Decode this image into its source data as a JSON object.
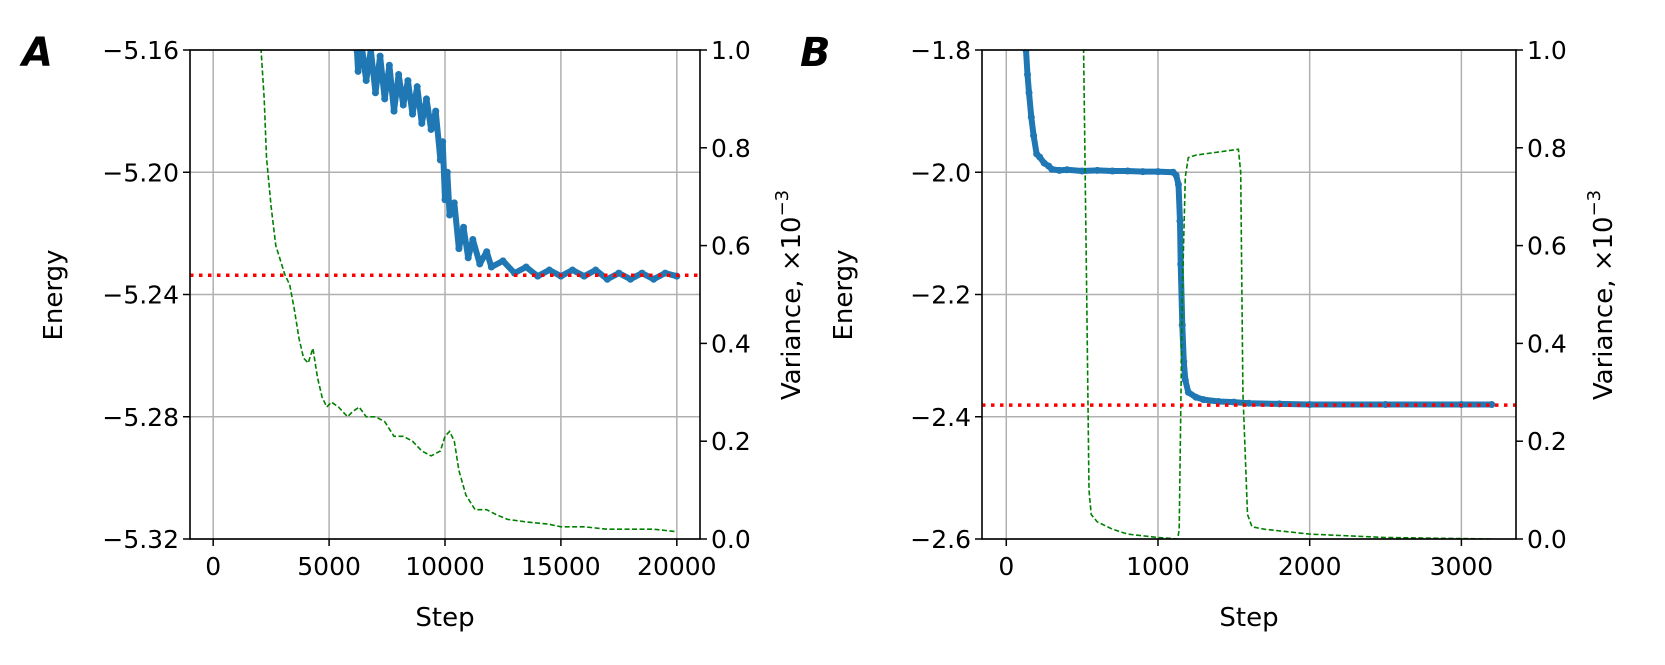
{
  "chart_data": [
    {
      "type": "line",
      "panel_label": "A",
      "xlabel": "Step",
      "ylabel": "Energy",
      "ylabel_right": "Variance, ×10",
      "ylabel_right_exponent": "−3",
      "xlim": [
        -1000,
        21000
      ],
      "ylim": [
        -5.32,
        -5.16
      ],
      "ylim_right": [
        0.0,
        1.0
      ],
      "xticks": [
        0,
        5000,
        10000,
        15000,
        20000
      ],
      "xtick_labels": [
        "0",
        "5000",
        "10000",
        "15000",
        "20000"
      ],
      "yticks": [
        -5.16,
        -5.2,
        -5.24,
        -5.28,
        -5.32
      ],
      "ytick_labels": [
        "−5.16",
        "−5.20",
        "−5.24",
        "−5.28",
        "−5.32"
      ],
      "yticks_right": [
        0.0,
        0.2,
        0.4,
        0.6,
        0.8,
        1.0
      ],
      "ytick_right_labels": [
        "0.0",
        "0.2",
        "0.4",
        "0.6",
        "0.8",
        "1.0"
      ],
      "grid": true,
      "reference_line": {
        "y": -5.2337,
        "style": "dotted",
        "color": "#ff0000"
      },
      "series": [
        {
          "axis": "left",
          "style": "markers-line",
          "color": "#1f77b4",
          "x": [
            6200,
            6250,
            6400,
            6600,
            6800,
            7000,
            7200,
            7400,
            7600,
            7800,
            8000,
            8200,
            8400,
            8600,
            8800,
            9000,
            9200,
            9400,
            9600,
            9800,
            9900,
            10000,
            10100,
            10200,
            10400,
            10600,
            10800,
            11000,
            11200,
            11500,
            11800,
            12000,
            12500,
            13000,
            13500,
            14000,
            14500,
            15000,
            15500,
            16000,
            16500,
            17000,
            17500,
            18000,
            18500,
            19000,
            19500,
            20000
          ],
          "y": [
            -5.16,
            -5.167,
            -5.158,
            -5.17,
            -5.16,
            -5.174,
            -5.162,
            -5.176,
            -5.165,
            -5.18,
            -5.168,
            -5.178,
            -5.17,
            -5.181,
            -5.172,
            -5.184,
            -5.176,
            -5.186,
            -5.18,
            -5.196,
            -5.19,
            -5.209,
            -5.2,
            -5.214,
            -5.21,
            -5.225,
            -5.218,
            -5.228,
            -5.222,
            -5.23,
            -5.226,
            -5.231,
            -5.229,
            -5.233,
            -5.231,
            -5.234,
            -5.232,
            -5.234,
            -5.232,
            -5.234,
            -5.232,
            -5.235,
            -5.233,
            -5.235,
            -5.233,
            -5.235,
            -5.233,
            -5.234
          ]
        },
        {
          "axis": "right",
          "style": "dashed",
          "color": "#008000",
          "x": [
            2000,
            2200,
            2300,
            2500,
            2700,
            2900,
            3100,
            3300,
            3500,
            3700,
            3900,
            4100,
            4300,
            4500,
            4700,
            4900,
            5100,
            5400,
            5800,
            6000,
            6300,
            6600,
            7000,
            7400,
            7800,
            8200,
            8600,
            9000,
            9400,
            9800,
            10000,
            10200,
            10400,
            10600,
            10900,
            11300,
            11800,
            12200,
            12700,
            13500,
            14500,
            15000,
            16000,
            17000,
            18000,
            19000,
            20000
          ],
          "y": [
            1.05,
            0.9,
            0.78,
            0.68,
            0.6,
            0.57,
            0.54,
            0.52,
            0.47,
            0.41,
            0.37,
            0.36,
            0.39,
            0.33,
            0.29,
            0.27,
            0.28,
            0.27,
            0.25,
            0.26,
            0.27,
            0.25,
            0.25,
            0.24,
            0.21,
            0.21,
            0.2,
            0.18,
            0.17,
            0.18,
            0.21,
            0.22,
            0.2,
            0.14,
            0.09,
            0.06,
            0.06,
            0.05,
            0.04,
            0.035,
            0.03,
            0.025,
            0.025,
            0.02,
            0.02,
            0.02,
            0.015
          ]
        }
      ]
    },
    {
      "type": "line",
      "panel_label": "B",
      "xlabel": "Step",
      "ylabel": "Energy",
      "ylabel_right": "Variance, ×10",
      "ylabel_right_exponent": "−3",
      "xlim": [
        -160,
        3360
      ],
      "ylim": [
        -2.6,
        -1.8
      ],
      "ylim_right": [
        0.0,
        1.0
      ],
      "xticks": [
        0,
        1000,
        2000,
        3000
      ],
      "xtick_labels": [
        "0",
        "1000",
        "2000",
        "3000"
      ],
      "yticks": [
        -1.8,
        -2.0,
        -2.2,
        -2.4,
        -2.6
      ],
      "ytick_labels": [
        "−1.8",
        "−2.0",
        "−2.2",
        "−2.4",
        "−2.6"
      ],
      "yticks_right": [
        0.0,
        0.2,
        0.4,
        0.6,
        0.8,
        1.0
      ],
      "ytick_right_labels": [
        "0.0",
        "0.2",
        "0.4",
        "0.6",
        "0.8",
        "1.0"
      ],
      "grid": true,
      "reference_line": {
        "y": -2.381,
        "style": "dotted",
        "color": "#ff0000"
      },
      "series": [
        {
          "axis": "left",
          "style": "markers-line",
          "color": "#1f77b4",
          "x": [
            130,
            140,
            150,
            165,
            180,
            200,
            220,
            250,
            280,
            300,
            350,
            400,
            500,
            600,
            700,
            800,
            900,
            1000,
            1100,
            1120,
            1135,
            1145,
            1150,
            1160,
            1170,
            1180,
            1200,
            1250,
            1300,
            1400,
            1500,
            1600,
            1800,
            2000,
            2500,
            3000,
            3200
          ],
          "y": [
            -1.8,
            -1.84,
            -1.87,
            -1.91,
            -1.94,
            -1.97,
            -1.975,
            -1.985,
            -1.99,
            -1.995,
            -1.997,
            -1.996,
            -1.998,
            -1.997,
            -1.998,
            -1.998,
            -1.999,
            -1.999,
            -2.0,
            -2.005,
            -2.02,
            -2.08,
            -2.15,
            -2.25,
            -2.31,
            -2.34,
            -2.36,
            -2.368,
            -2.372,
            -2.375,
            -2.376,
            -2.378,
            -2.379,
            -2.38,
            -2.38,
            -2.38,
            -2.38
          ]
        },
        {
          "axis": "right",
          "style": "dashed",
          "color": "#008000",
          "x": [
            500,
            510,
            530,
            545,
            560,
            600,
            700,
            800,
            1000,
            1130,
            1140,
            1160,
            1180,
            1200,
            1250,
            1530,
            1545,
            1560,
            1590,
            1620,
            1700,
            2000,
            2500,
            3200
          ],
          "y": [
            1.05,
            1.0,
            0.5,
            0.1,
            0.05,
            0.035,
            0.02,
            0.01,
            0.003,
            0.0,
            0.02,
            0.5,
            0.74,
            0.78,
            0.785,
            0.797,
            0.75,
            0.3,
            0.05,
            0.025,
            0.02,
            0.01,
            0.003,
            0.0
          ]
        }
      ]
    }
  ]
}
